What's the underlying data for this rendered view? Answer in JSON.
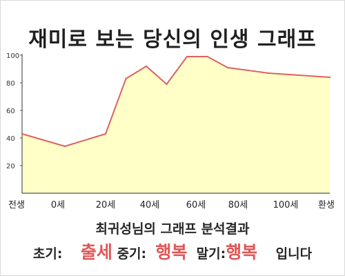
{
  "title": "재미로 보는 당신의 인생 그래프",
  "summary_text": "최귀성님의 그래프 분석결과",
  "result": {
    "early_label": "초기:",
    "early_value": "출세",
    "mid_label": "중기:",
    "mid_value": "행복",
    "late_label": "말기:",
    "late_value": "행복",
    "suffix": "입니다"
  },
  "colors": {
    "fill": "#ffffc7",
    "line": "#e06060",
    "result_value": "#e25757"
  },
  "chart_data": {
    "type": "area",
    "title": "재미로 보는 당신의 인생 그래프",
    "xlabel": "",
    "ylabel": "",
    "x_ticks": [
      "전생",
      "0세",
      "20세",
      "40세",
      "60세",
      "80세",
      "100세",
      "환생"
    ],
    "y_ticks": [
      20,
      40,
      60,
      80,
      100
    ],
    "ylim": [
      0,
      100
    ],
    "grid": false,
    "points": [
      {
        "x": "전생",
        "y": 43
      },
      {
        "x": "0세",
        "y": 34
      },
      {
        "x": "20세",
        "y": 43
      },
      {
        "x": "30세",
        "y": 83
      },
      {
        "x": "40세",
        "y": 92
      },
      {
        "x": "50세",
        "y": 79
      },
      {
        "x": "60세",
        "y": 99
      },
      {
        "x": "70세",
        "y": 99
      },
      {
        "x": "80세",
        "y": 91
      },
      {
        "x": "100세",
        "y": 87
      },
      {
        "x": "환생",
        "y": 84
      }
    ]
  }
}
